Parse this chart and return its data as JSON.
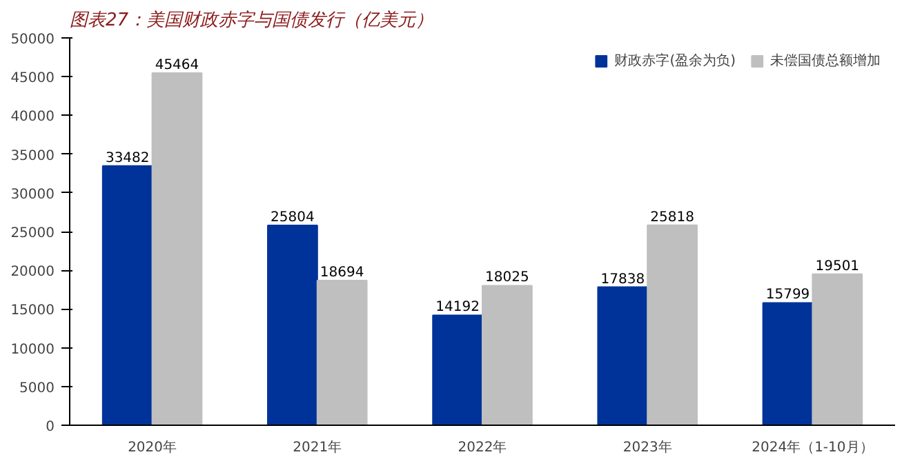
{
  "chart_data": {
    "type": "bar",
    "title": "图表27：美国财政赤字与国债发行（亿美元）",
    "categories": [
      "2020年",
      "2021年",
      "2022年",
      "2023年",
      "2024年（1-10月）"
    ],
    "series": [
      {
        "name": "财政赤字(盈余为负)",
        "color": "#003399",
        "values": [
          33482,
          25804,
          14192,
          17838,
          15799
        ]
      },
      {
        "name": "未偿国债总额增加",
        "color": "#bfbfbf",
        "values": [
          45464,
          18694,
          18025,
          25818,
          19501
        ]
      }
    ],
    "ylim": [
      0,
      50000
    ],
    "yticks": [
      0,
      5000,
      10000,
      15000,
      20000,
      25000,
      30000,
      35000,
      40000,
      45000,
      50000
    ],
    "data_labels": true,
    "grid": false,
    "legend": "top right"
  }
}
